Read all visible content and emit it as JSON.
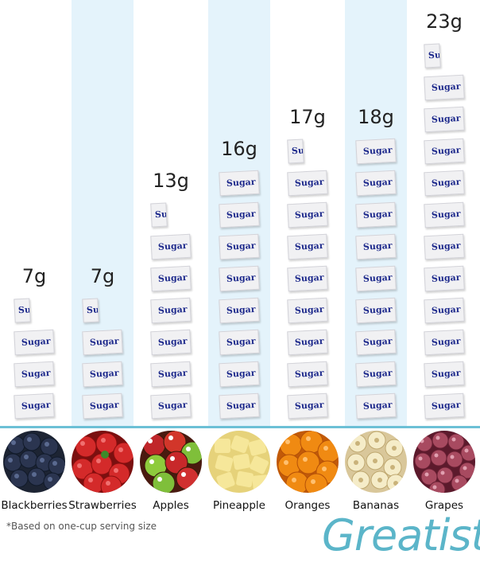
{
  "chart_data": {
    "type": "bar",
    "categories": [
      "Blackberries",
      "Strawberries",
      "Apples",
      "Pineapple",
      "Oranges",
      "Bananas",
      "Grapes"
    ],
    "values": [
      7,
      7,
      13,
      16,
      17,
      18,
      23
    ],
    "value_labels": [
      "7g",
      "7g",
      "13g",
      "16g",
      "17g",
      "18g",
      "23g"
    ],
    "packet_text": "Sugar",
    "footnote": "*Based on one-cup serving size",
    "grams_per_packet": 2,
    "stripe_color": "#e4f3fb",
    "baseline_color": "#6cc0d6"
  },
  "brand": {
    "name": "Greatist",
    "color": "#5bb5c9"
  },
  "fruit_icons": [
    "blackberries-icon",
    "strawberries-icon",
    "apples-icon",
    "pineapple-icon",
    "oranges-icon",
    "bananas-icon",
    "grapes-icon"
  ]
}
